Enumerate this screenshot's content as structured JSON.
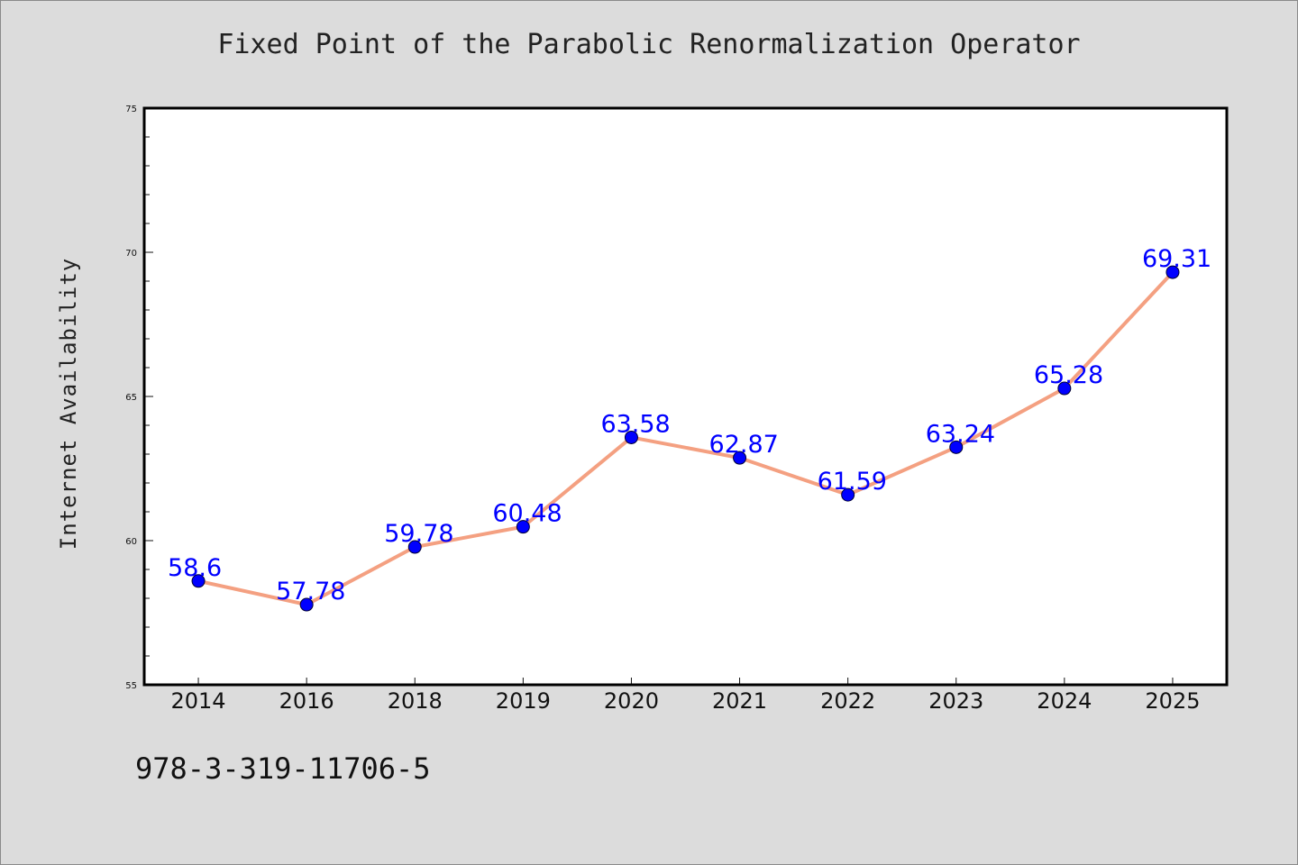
{
  "isbn_text": "978-3-319-11706-5",
  "chart_data": {
    "type": "line",
    "title": "Fixed Point of the Parabolic Renormalization Operator",
    "xlabel": "",
    "ylabel": "Internet Availability",
    "categories": [
      "2014",
      "2016",
      "2018",
      "2019",
      "2020",
      "2021",
      "2022",
      "2023",
      "2024",
      "2025"
    ],
    "series": [
      {
        "values": [
          58.6,
          57.78,
          59.78,
          60.48,
          63.58,
          62.87,
          61.59,
          63.24,
          65.28,
          69.31
        ],
        "labels": [
          "58.6",
          "57.78",
          "59.78",
          "60.48",
          "63.58",
          "62.87",
          "61.59",
          "63.24",
          "65.28",
          "69.31"
        ],
        "line_color": "#f4a081",
        "marker_color": "#0000ff"
      }
    ],
    "ylim": [
      55,
      75
    ],
    "y_ticks": [
      "55",
      "60",
      "65",
      "70",
      "75"
    ],
    "grid": false,
    "label_color": "#0000ff",
    "background": "#dcdcdc",
    "plot_background": "#ffffff"
  }
}
